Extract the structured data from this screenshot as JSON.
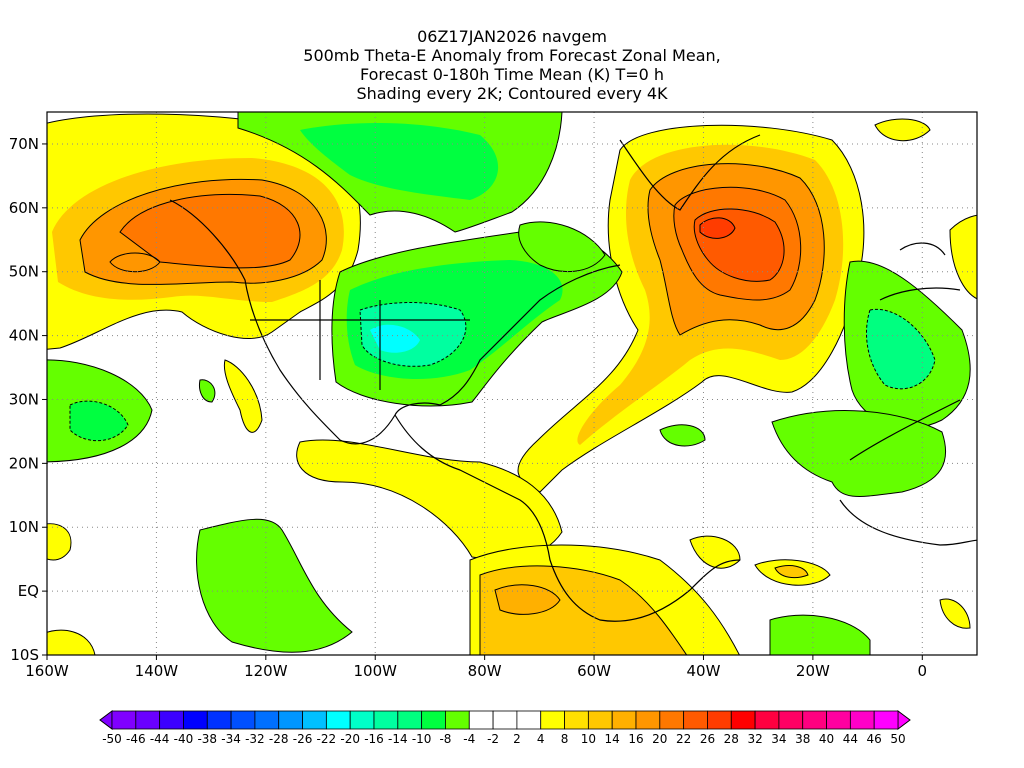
{
  "title": {
    "line1": "06Z17JAN2026 navgem",
    "line2": "500mb Theta-E Anomaly from Forecast Zonal Mean,",
    "line3": "Forecast 0-180h Time Mean (K) T=0 h",
    "line4": "Shading every 2K; Contoured every 4K"
  },
  "map": {
    "lon_ticks": [
      {
        "lon": -160,
        "label": "160W"
      },
      {
        "lon": -140,
        "label": "140W"
      },
      {
        "lon": -120,
        "label": "120W"
      },
      {
        "lon": -100,
        "label": "100W"
      },
      {
        "lon": -80,
        "label": "80W"
      },
      {
        "lon": -60,
        "label": "60W"
      },
      {
        "lon": -40,
        "label": "40W"
      },
      {
        "lon": -20,
        "label": "20W"
      },
      {
        "lon": 0,
        "label": "0"
      }
    ],
    "lat_ticks": [
      {
        "lat": 70,
        "label": "70N"
      },
      {
        "lat": 60,
        "label": "60N"
      },
      {
        "lat": 50,
        "label": "50N"
      },
      {
        "lat": 40,
        "label": "40N"
      },
      {
        "lat": 30,
        "label": "30N"
      },
      {
        "lat": 20,
        "label": "20N"
      },
      {
        "lat": 10,
        "label": "10N"
      },
      {
        "lat": 0,
        "label": "EQ"
      },
      {
        "lat": -10,
        "label": "10S"
      }
    ],
    "lon_range": [
      -160,
      10
    ],
    "lat_range": [
      -10,
      75
    ]
  },
  "colorbar": {
    "labels": [
      "-50",
      "-46",
      "-44",
      "-40",
      "-38",
      "-34",
      "-32",
      "-28",
      "-26",
      "-22",
      "-20",
      "-16",
      "-14",
      "-10",
      "-8",
      "-4",
      "-2",
      "2",
      "4",
      "8",
      "10",
      "14",
      "16",
      "20",
      "22",
      "26",
      "28",
      "32",
      "34",
      "38",
      "40",
      "44",
      "46",
      "50"
    ],
    "colors": [
      "#8000ff",
      "#6a00ff",
      "#3c00ff",
      "#0000ff",
      "#0032ff",
      "#0050ff",
      "#0070ff",
      "#0096ff",
      "#00c0ff",
      "#00ffff",
      "#00ffc8",
      "#00ffa0",
      "#00ff80",
      "#00ff40",
      "#64ff00",
      "#ffffff",
      "#ffffff",
      "#ffffff",
      "#ffff00",
      "#ffe000",
      "#ffc800",
      "#ffb000",
      "#ff9600",
      "#ff7800",
      "#ff5a00",
      "#ff3c00",
      "#ff0000",
      "#ff0040",
      "#ff0064",
      "#ff0080",
      "#ff00a0",
      "#ff00c8",
      "#ff00ff"
    ],
    "low_color": "#8000ff",
    "high_color": "#ff00ff"
  }
}
